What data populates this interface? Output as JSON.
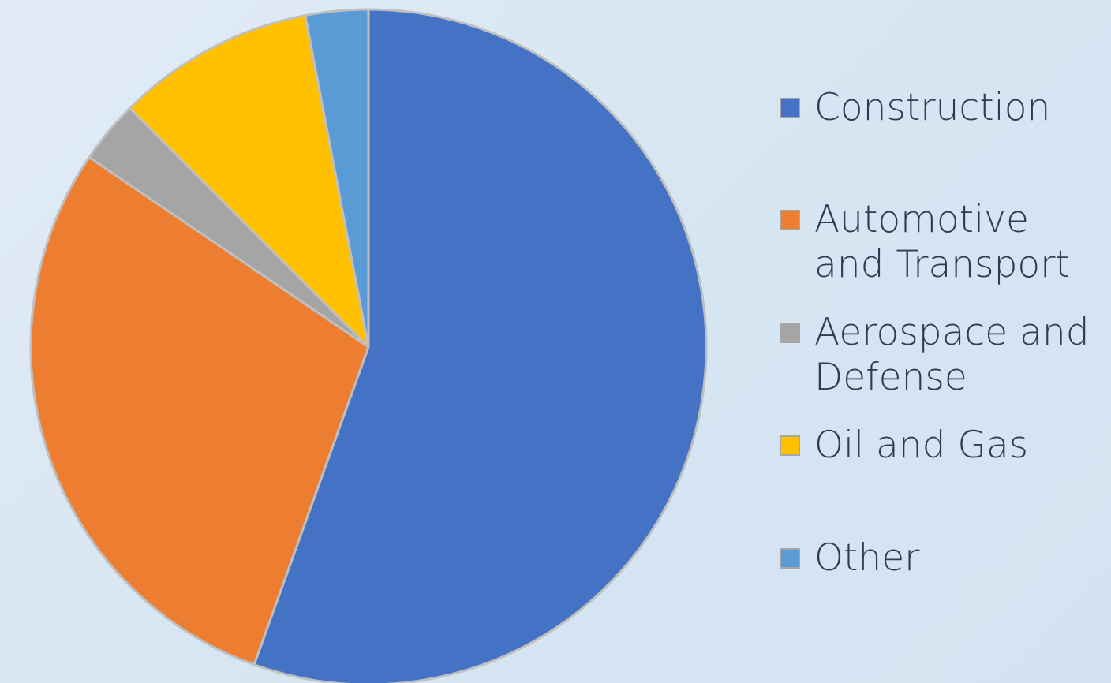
{
  "chart_data": {
    "type": "pie",
    "title": "",
    "categories": [
      "Construction",
      "Automotive and Transport",
      "Aerospace and Defense",
      "Oil and Gas",
      "Other"
    ],
    "values": [
      55.5,
      29,
      3,
      9.5,
      3
    ],
    "colors": [
      "#4472c4",
      "#ed7d31",
      "#a5a5a5",
      "#ffc000",
      "#5b9bd5"
    ],
    "slice_border_color": "#bfbfbf",
    "start_angle": "12 o'clock",
    "direction": "clockwise",
    "legend_position": "right"
  },
  "legend": {
    "items": [
      {
        "label": "Construction",
        "color": "#4472c4"
      },
      {
        "label": "Automotive and Transport",
        "color": "#ed7d31"
      },
      {
        "label": "Aerospace and Defense",
        "color": "#a5a5a5"
      },
      {
        "label": "Oil and Gas",
        "color": "#ffc000"
      },
      {
        "label": "Other",
        "color": "#5b9bd5"
      }
    ]
  }
}
